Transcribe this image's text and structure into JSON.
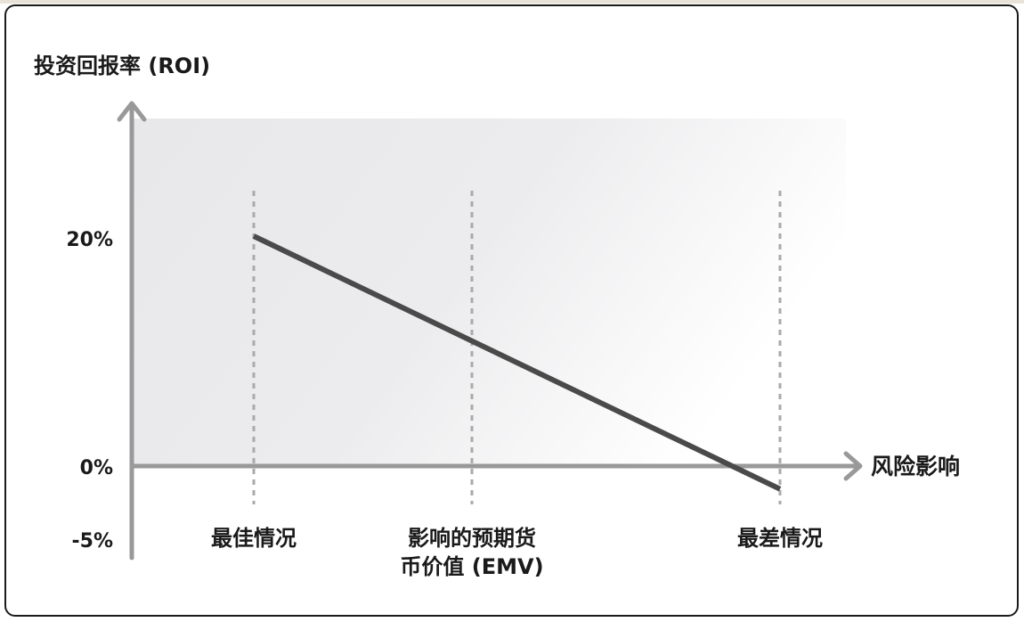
{
  "chart_data": {
    "type": "line",
    "ylabel": "投资回报率 (ROI)",
    "xlabel": "风险影响",
    "y_ticks": [
      "20%",
      "0%",
      "-5%"
    ],
    "categories": [
      "最佳情况",
      "影响的预期货币价值 (EMV)",
      "最差情况"
    ],
    "category_lines": [
      [
        "最佳情况"
      ],
      [
        "影响的预期货",
        "币价值 (EMV)"
      ],
      [
        "最差情况"
      ]
    ],
    "series": [
      {
        "x": [
          0,
          3
        ],
        "y": [
          20,
          -2
        ]
      }
    ],
    "ylim": [
      -5,
      20
    ],
    "colors": {
      "line": "#4a4a4a",
      "axis": "#999999",
      "guides": "#aaaaaa",
      "shade": "#e8e8ea"
    }
  }
}
